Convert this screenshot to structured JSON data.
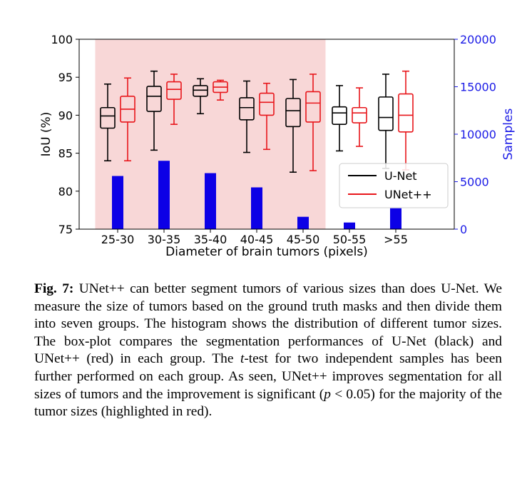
{
  "chart_data": {
    "type": "box-and-bar",
    "xlabel": "Diameter of brain tumors (pixels)",
    "ylabel": "IoU (%)",
    "ylabel_right": "Samples",
    "ylim": [
      75,
      100
    ],
    "ylim_right": [
      0,
      20000
    ],
    "yticks": [
      75,
      80,
      85,
      90,
      95,
      100
    ],
    "yticks_right": [
      0,
      5000,
      10000,
      15000,
      20000
    ],
    "categories": [
      "25-30",
      "30-35",
      "35-40",
      "40-45",
      "45-50",
      "50-55",
      ">55"
    ],
    "highlighted_categories": [
      "25-30",
      "30-35",
      "35-40",
      "40-45",
      "45-50"
    ],
    "highlight_color": "#f8d7d7",
    "legend": {
      "placement": "lower-right"
    },
    "grid": false,
    "box_series": [
      {
        "name": "U-Net",
        "color": "#000000",
        "boxes": [
          {
            "whislo": 84.0,
            "q1": 88.3,
            "med": 89.9,
            "q3": 91.0,
            "whishi": 94.1
          },
          {
            "whislo": 85.4,
            "q1": 90.5,
            "med": 92.5,
            "q3": 93.8,
            "whishi": 95.8
          },
          {
            "whislo": 90.2,
            "q1": 92.5,
            "med": 93.3,
            "q3": 93.9,
            "whishi": 94.8
          },
          {
            "whislo": 85.1,
            "q1": 89.4,
            "med": 91.0,
            "q3": 92.3,
            "whishi": 94.5
          },
          {
            "whislo": 82.5,
            "q1": 88.5,
            "med": 90.6,
            "q3": 92.2,
            "whishi": 94.7
          },
          {
            "whislo": 85.3,
            "q1": 88.8,
            "med": 90.3,
            "q3": 91.1,
            "whishi": 93.9
          },
          {
            "whislo": 83.0,
            "q1": 88.0,
            "med": 89.7,
            "q3": 92.4,
            "whishi": 95.4
          }
        ]
      },
      {
        "name": "UNet++",
        "color": "#e8161b",
        "boxes": [
          {
            "whislo": 84.0,
            "q1": 89.1,
            "med": 90.8,
            "q3": 92.5,
            "whishi": 94.9
          },
          {
            "whislo": 88.8,
            "q1": 92.1,
            "med": 93.4,
            "q3": 94.4,
            "whishi": 95.4
          },
          {
            "whislo": 92.0,
            "q1": 93.0,
            "med": 93.7,
            "q3": 94.4,
            "whishi": 94.6
          },
          {
            "whislo": 85.5,
            "q1": 90.0,
            "med": 91.7,
            "q3": 92.9,
            "whishi": 94.2
          },
          {
            "whislo": 82.7,
            "q1": 89.1,
            "med": 91.6,
            "q3": 93.1,
            "whishi": 95.4
          },
          {
            "whislo": 85.9,
            "q1": 89.0,
            "med": 90.3,
            "q3": 91.0,
            "whishi": 93.6
          },
          {
            "whislo": 82.8,
            "q1": 87.8,
            "med": 90.0,
            "q3": 92.8,
            "whishi": 95.8
          }
        ]
      }
    ],
    "bar_series": {
      "name": "Samples",
      "color": "#0c00e6",
      "axis": "right",
      "values": [
        5600,
        7200,
        5900,
        4400,
        1300,
        700,
        2200
      ]
    }
  },
  "caption": {
    "label": "Fig. 7:",
    "p1": " UNet++ can better segment tumors of various sizes than does U-Net. We measure the size of tumors based on the ground truth masks and then divide them into seven groups. The histogram shows the distribution of different tumor sizes. The box-plot compares the segmentation performances of U-Net (black) and UNet++ (red) in each group. The ",
    "t": "t",
    "p2": "-test for two independent samples has been further performed on each group. As seen, UNet++ improves segmentation for all sizes of tumors and the improvement is significant (",
    "pvar": "p",
    "p3": " < 0.05) for the majority of the tumor sizes (highlighted in red)."
  }
}
